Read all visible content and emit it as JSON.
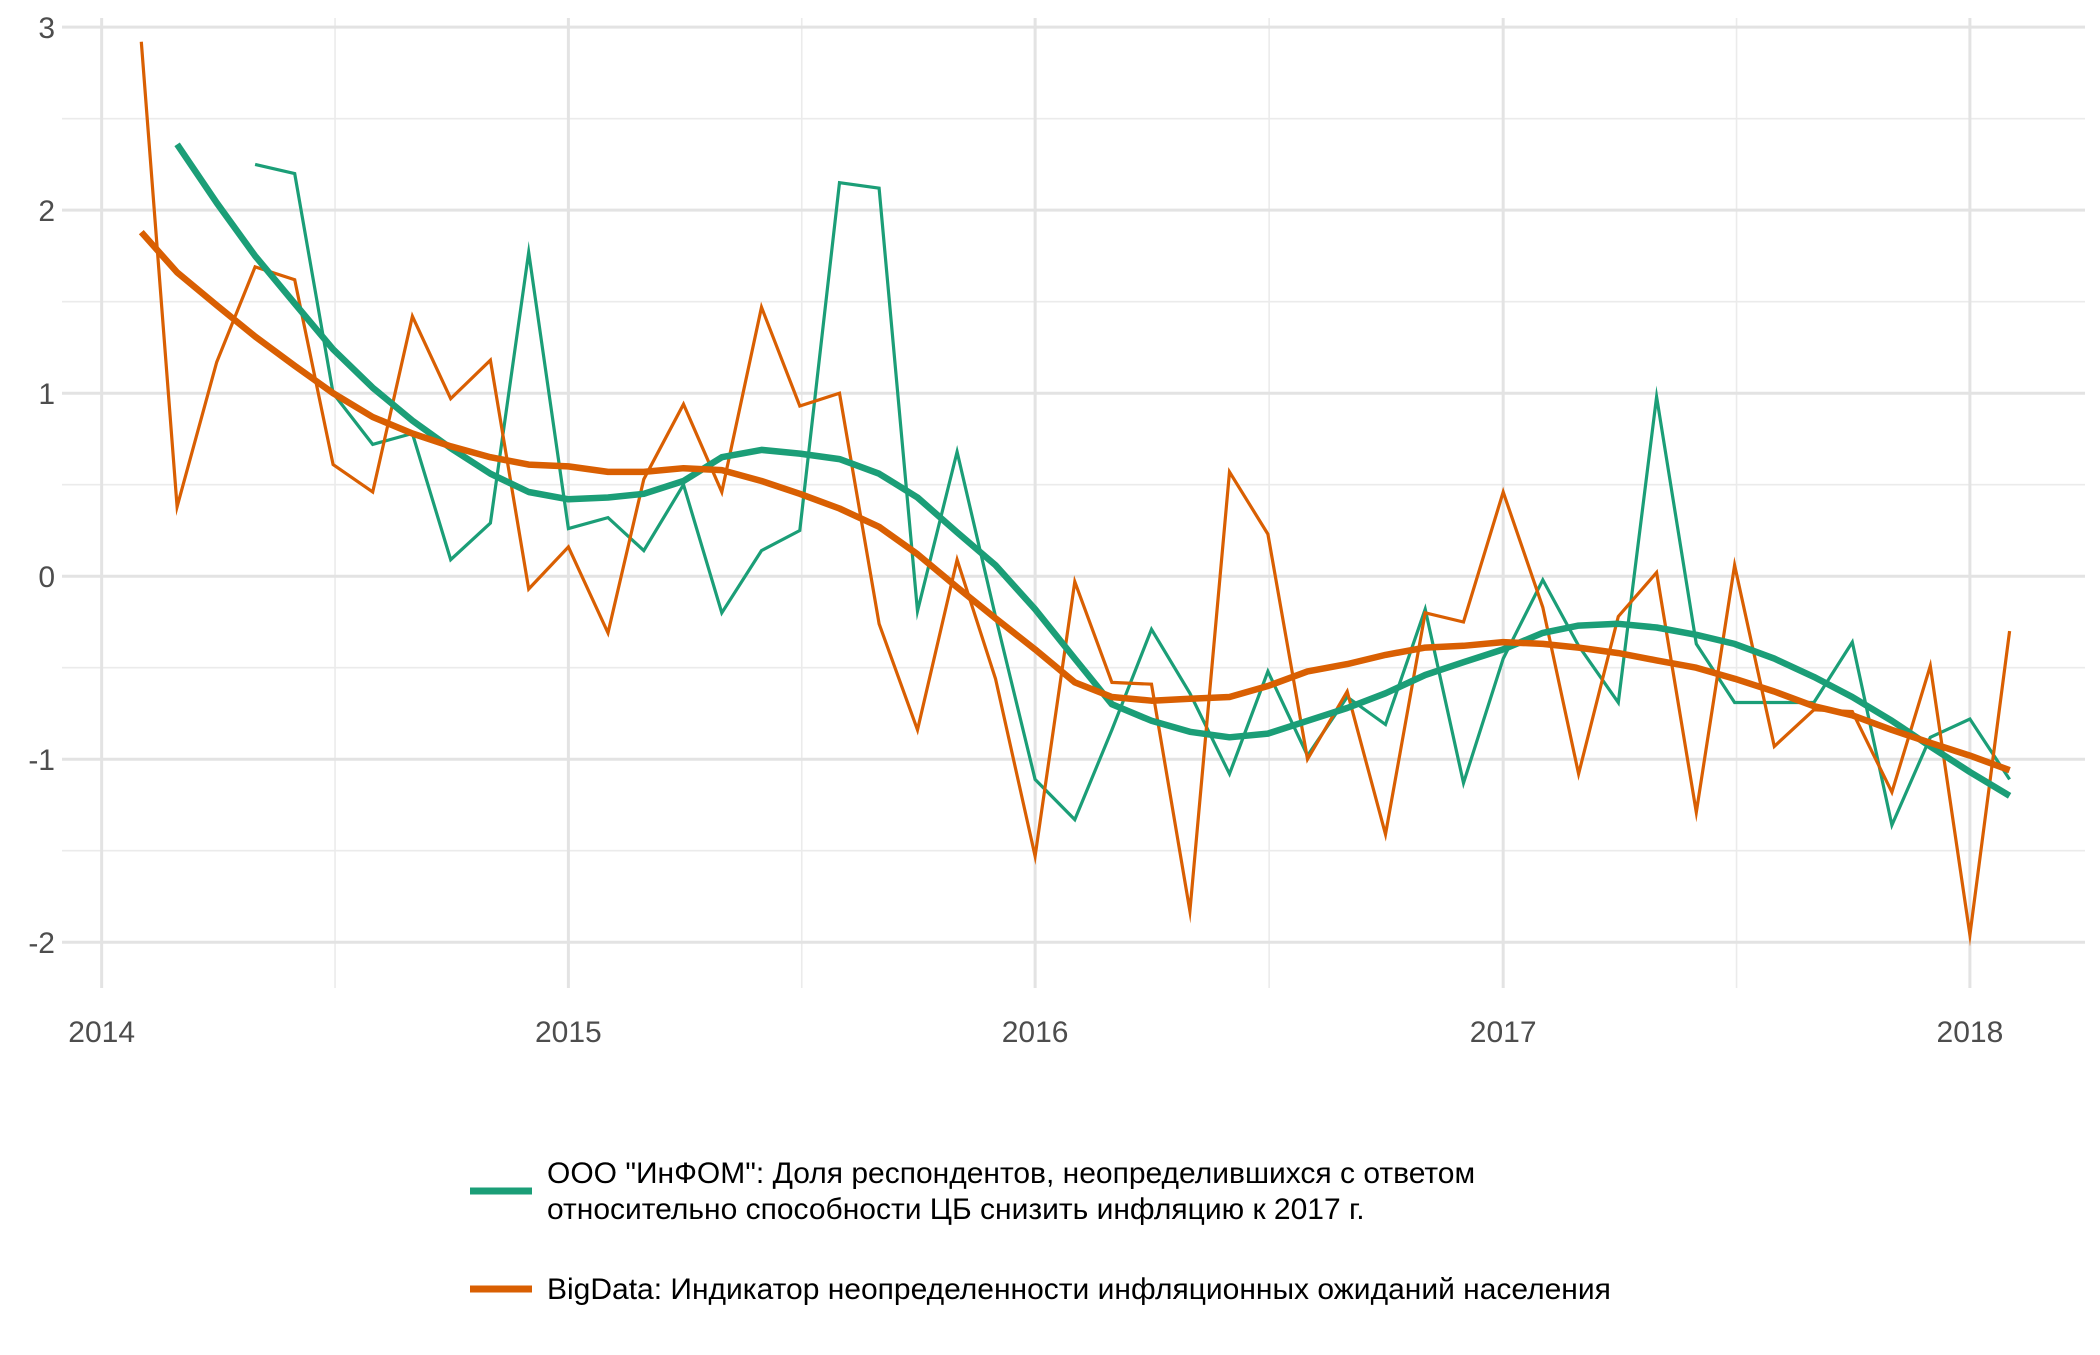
{
  "chart_data": {
    "type": "line",
    "title": "",
    "xlabel": "",
    "ylabel": "",
    "x_range": [
      "2013-12-01",
      "2018-04-01"
    ],
    "ylim": [
      -2.25,
      3.05
    ],
    "y_ticks": [
      3,
      2,
      1,
      0,
      -1,
      -2
    ],
    "y_tick_labels": [
      "3",
      "2",
      "1",
      "0",
      "-1",
      "-2"
    ],
    "x_ticks": [
      "2014-01-01",
      "2015-01-01",
      "2016-01-01",
      "2017-01-01",
      "2018-01-01"
    ],
    "x_tick_labels": [
      "2014",
      "2015",
      "2016",
      "2017",
      "2018"
    ],
    "grid": true,
    "legend_position": "bottom",
    "series": [
      {
        "name": "ООО \"ИнФОМ\": Доля респондентов, неопределившихся с ответом относительно способности ЦБ снизить инфляцию к 2017 г.",
        "legend_lines": [
          "ООО \"ИнФОМ\": Доля респондентов, неопределившихся с ответом",
          " относительно способности ЦБ снизить инфляцию к 2017 г."
        ],
        "color": "#1b9e77",
        "raw": [
          [
            "2014-05-01",
            2.25
          ],
          [
            "2014-06-01",
            2.2
          ],
          [
            "2014-07-01",
            1.0
          ],
          [
            "2014-08-01",
            0.72
          ],
          [
            "2014-09-01",
            0.78
          ],
          [
            "2014-10-01",
            0.09
          ],
          [
            "2014-11-01",
            0.29
          ],
          [
            "2014-12-01",
            1.77
          ],
          [
            "2015-01-01",
            0.26
          ],
          [
            "2015-02-01",
            0.32
          ],
          [
            "2015-03-01",
            0.14
          ],
          [
            "2015-04-01",
            0.5
          ],
          [
            "2015-05-01",
            -0.2
          ],
          [
            "2015-06-01",
            0.14
          ],
          [
            "2015-07-01",
            0.25
          ],
          [
            "2015-08-01",
            2.15
          ],
          [
            "2015-09-01",
            2.12
          ],
          [
            "2015-10-01",
            -0.19
          ],
          [
            "2015-11-01",
            0.68
          ],
          [
            "2015-12-01",
            -0.22
          ],
          [
            "2016-01-01",
            -1.11
          ],
          [
            "2016-02-01",
            -1.33
          ],
          [
            "2016-03-01",
            -0.84
          ],
          [
            "2016-04-01",
            -0.29
          ],
          [
            "2016-05-01",
            -0.64
          ],
          [
            "2016-06-01",
            -1.08
          ],
          [
            "2016-07-01",
            -0.52
          ],
          [
            "2016-08-01",
            -0.98
          ],
          [
            "2016-09-01",
            -0.66
          ],
          [
            "2016-10-01",
            -0.81
          ],
          [
            "2016-11-01",
            -0.18
          ],
          [
            "2016-12-01",
            -1.13
          ],
          [
            "2017-01-01",
            -0.45
          ],
          [
            "2017-02-01",
            -0.02
          ],
          [
            "2017-03-01",
            -0.38
          ],
          [
            "2017-04-01",
            -0.69
          ],
          [
            "2017-05-01",
            0.98
          ],
          [
            "2017-06-01",
            -0.37
          ],
          [
            "2017-07-01",
            -0.69
          ],
          [
            "2017-08-01",
            -0.69
          ],
          [
            "2017-09-01",
            -0.69
          ],
          [
            "2017-10-01",
            -0.36
          ],
          [
            "2017-11-01",
            -1.36
          ],
          [
            "2017-12-01",
            -0.88
          ],
          [
            "2018-01-01",
            -0.78
          ],
          [
            "2018-02-01",
            -1.11
          ]
        ],
        "smooth": [
          [
            "2014-03-01",
            2.36
          ],
          [
            "2014-04-01",
            2.04
          ],
          [
            "2014-05-01",
            1.75
          ],
          [
            "2014-06-01",
            1.49
          ],
          [
            "2014-07-01",
            1.24
          ],
          [
            "2014-08-01",
            1.03
          ],
          [
            "2014-09-01",
            0.85
          ],
          [
            "2014-10-01",
            0.7
          ],
          [
            "2014-11-01",
            0.56
          ],
          [
            "2014-12-01",
            0.46
          ],
          [
            "2015-01-01",
            0.42
          ],
          [
            "2015-02-01",
            0.43
          ],
          [
            "2015-03-01",
            0.45
          ],
          [
            "2015-04-01",
            0.52
          ],
          [
            "2015-05-01",
            0.65
          ],
          [
            "2015-06-01",
            0.69
          ],
          [
            "2015-07-01",
            0.67
          ],
          [
            "2015-08-01",
            0.64
          ],
          [
            "2015-09-01",
            0.56
          ],
          [
            "2015-10-01",
            0.43
          ],
          [
            "2015-11-01",
            0.24
          ],
          [
            "2015-12-01",
            0.06
          ],
          [
            "2016-01-01",
            -0.18
          ],
          [
            "2016-02-01",
            -0.45
          ],
          [
            "2016-03-01",
            -0.7
          ],
          [
            "2016-04-01",
            -0.79
          ],
          [
            "2016-05-01",
            -0.85
          ],
          [
            "2016-06-01",
            -0.88
          ],
          [
            "2016-07-01",
            -0.86
          ],
          [
            "2016-08-01",
            -0.79
          ],
          [
            "2016-09-01",
            -0.72
          ],
          [
            "2016-10-01",
            -0.64
          ],
          [
            "2016-11-01",
            -0.54
          ],
          [
            "2016-12-01",
            -0.47
          ],
          [
            "2017-01-01",
            -0.4
          ],
          [
            "2017-02-01",
            -0.31
          ],
          [
            "2017-03-01",
            -0.27
          ],
          [
            "2017-04-01",
            -0.26
          ],
          [
            "2017-05-01",
            -0.28
          ],
          [
            "2017-06-01",
            -0.32
          ],
          [
            "2017-07-01",
            -0.37
          ],
          [
            "2017-08-01",
            -0.45
          ],
          [
            "2017-09-01",
            -0.55
          ],
          [
            "2017-10-01",
            -0.66
          ],
          [
            "2017-11-01",
            -0.79
          ],
          [
            "2017-12-01",
            -0.93
          ],
          [
            "2018-01-01",
            -1.07
          ],
          [
            "2018-02-01",
            -1.2
          ]
        ]
      },
      {
        "name": "BigData: Индикатор неопределенности инфляционных ожиданий населения",
        "legend_lines": [
          "BigData: Индикатор неопределенности инфляционных ожиданий населения"
        ],
        "color": "#d95f02",
        "raw": [
          [
            "2014-02-01",
            2.92
          ],
          [
            "2014-03-01",
            0.38
          ],
          [
            "2014-04-01",
            1.17
          ],
          [
            "2014-05-01",
            1.69
          ],
          [
            "2014-06-01",
            1.62
          ],
          [
            "2014-07-01",
            0.61
          ],
          [
            "2014-08-01",
            0.46
          ],
          [
            "2014-09-01",
            1.42
          ],
          [
            "2014-10-01",
            0.97
          ],
          [
            "2014-11-01",
            1.18
          ],
          [
            "2014-12-01",
            -0.07
          ],
          [
            "2015-01-01",
            0.16
          ],
          [
            "2015-02-01",
            -0.31
          ],
          [
            "2015-03-01",
            0.53
          ],
          [
            "2015-04-01",
            0.94
          ],
          [
            "2015-05-01",
            0.46
          ],
          [
            "2015-06-01",
            1.47
          ],
          [
            "2015-07-01",
            0.93
          ],
          [
            "2015-08-01",
            1.0
          ],
          [
            "2015-09-01",
            -0.26
          ],
          [
            "2015-10-01",
            -0.84
          ],
          [
            "2015-11-01",
            0.09
          ],
          [
            "2015-12-01",
            -0.56
          ],
          [
            "2016-01-01",
            -1.53
          ],
          [
            "2016-02-01",
            -0.03
          ],
          [
            "2016-03-01",
            -0.58
          ],
          [
            "2016-04-01",
            -0.59
          ],
          [
            "2016-05-01",
            -1.83
          ],
          [
            "2016-06-01",
            0.57
          ],
          [
            "2016-07-01",
            0.23
          ],
          [
            "2016-08-01",
            -1.0
          ],
          [
            "2016-09-01",
            -0.63
          ],
          [
            "2016-10-01",
            -1.41
          ],
          [
            "2016-11-01",
            -0.2
          ],
          [
            "2016-12-01",
            -0.25
          ],
          [
            "2017-01-01",
            0.46
          ],
          [
            "2017-02-01",
            -0.17
          ],
          [
            "2017-03-01",
            -1.08
          ],
          [
            "2017-04-01",
            -0.22
          ],
          [
            "2017-05-01",
            0.02
          ],
          [
            "2017-06-01",
            -1.29
          ],
          [
            "2017-07-01",
            0.06
          ],
          [
            "2017-08-01",
            -0.93
          ],
          [
            "2017-09-01",
            -0.73
          ],
          [
            "2017-10-01",
            -0.74
          ],
          [
            "2017-11-01",
            -1.18
          ],
          [
            "2017-12-01",
            -0.49
          ],
          [
            "2018-01-01",
            -1.96
          ],
          [
            "2018-02-01",
            -0.3
          ]
        ],
        "smooth": [
          [
            "2014-02-01",
            1.88
          ],
          [
            "2014-03-01",
            1.66
          ],
          [
            "2014-04-01",
            1.48
          ],
          [
            "2014-05-01",
            1.31
          ],
          [
            "2014-06-01",
            1.15
          ],
          [
            "2014-07-01",
            1.0
          ],
          [
            "2014-08-01",
            0.87
          ],
          [
            "2014-09-01",
            0.78
          ],
          [
            "2014-10-01",
            0.71
          ],
          [
            "2014-11-01",
            0.65
          ],
          [
            "2014-12-01",
            0.61
          ],
          [
            "2015-01-01",
            0.6
          ],
          [
            "2015-02-01",
            0.57
          ],
          [
            "2015-03-01",
            0.57
          ],
          [
            "2015-04-01",
            0.59
          ],
          [
            "2015-05-01",
            0.58
          ],
          [
            "2015-06-01",
            0.52
          ],
          [
            "2015-07-01",
            0.45
          ],
          [
            "2015-08-01",
            0.37
          ],
          [
            "2015-09-01",
            0.27
          ],
          [
            "2015-10-01",
            0.12
          ],
          [
            "2015-11-01",
            -0.06
          ],
          [
            "2015-12-01",
            -0.23
          ],
          [
            "2016-01-01",
            -0.4
          ],
          [
            "2016-02-01",
            -0.58
          ],
          [
            "2016-03-01",
            -0.66
          ],
          [
            "2016-04-01",
            -0.68
          ],
          [
            "2016-05-01",
            -0.67
          ],
          [
            "2016-06-01",
            -0.66
          ],
          [
            "2016-07-01",
            -0.6
          ],
          [
            "2016-08-01",
            -0.52
          ],
          [
            "2016-09-01",
            -0.48
          ],
          [
            "2016-10-01",
            -0.43
          ],
          [
            "2016-11-01",
            -0.39
          ],
          [
            "2016-12-01",
            -0.38
          ],
          [
            "2017-01-01",
            -0.36
          ],
          [
            "2017-02-01",
            -0.37
          ],
          [
            "2017-03-01",
            -0.39
          ],
          [
            "2017-04-01",
            -0.42
          ],
          [
            "2017-05-01",
            -0.46
          ],
          [
            "2017-06-01",
            -0.5
          ],
          [
            "2017-07-01",
            -0.56
          ],
          [
            "2017-08-01",
            -0.63
          ],
          [
            "2017-09-01",
            -0.71
          ],
          [
            "2017-10-01",
            -0.76
          ],
          [
            "2017-11-01",
            -0.84
          ],
          [
            "2017-12-01",
            -0.91
          ],
          [
            "2018-01-01",
            -0.98
          ],
          [
            "2018-02-01",
            -1.06
          ]
        ]
      }
    ]
  }
}
